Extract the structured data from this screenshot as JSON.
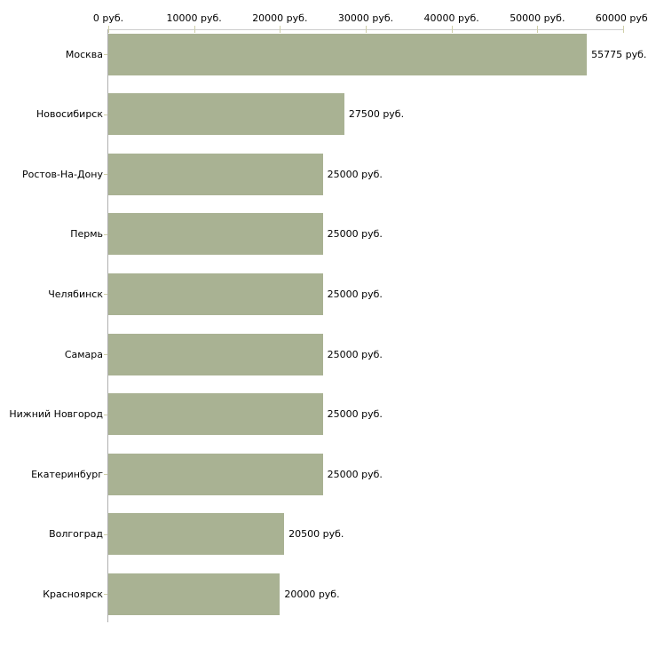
{
  "chart_data": {
    "type": "bar",
    "orientation": "horizontal",
    "title": "",
    "xlabel": "",
    "ylabel": "",
    "unit": "руб.",
    "categories": [
      "Москва",
      "Новосибирск",
      "Ростов-На-Дону",
      "Пермь",
      "Челябинск",
      "Самара",
      "Нижний Новгород",
      "Екатеринбург",
      "Волгоград",
      "Красноярск"
    ],
    "values": [
      55775,
      27500,
      25000,
      25000,
      25000,
      25000,
      25000,
      25000,
      20500,
      20000
    ],
    "value_labels": [
      "55775 руб.",
      "27500 руб.",
      "25000 руб.",
      "25000 руб.",
      "25000 руб.",
      "25000 руб.",
      "25000 руб.",
      "25000 руб.",
      "20500 руб.",
      "20000 руб."
    ],
    "x_ticks": [
      0,
      10000,
      20000,
      30000,
      40000,
      50000,
      60000
    ],
    "x_tick_labels": [
      "0 руб.",
      "10000 руб.",
      "20000 руб.",
      "30000 руб.",
      "40000 руб.",
      "50000 руб.",
      "60000 руб."
    ],
    "xlim": [
      0,
      60000
    ],
    "grid": false,
    "legend": "none",
    "axis_position": "top",
    "colors": {
      "bar": "#a9b293",
      "horizontal_axis": "#cccccc",
      "vertical_axis": "#b0b0b0",
      "tick": "#cfcfa8",
      "text": "#000000",
      "background": "#ffffff"
    }
  }
}
